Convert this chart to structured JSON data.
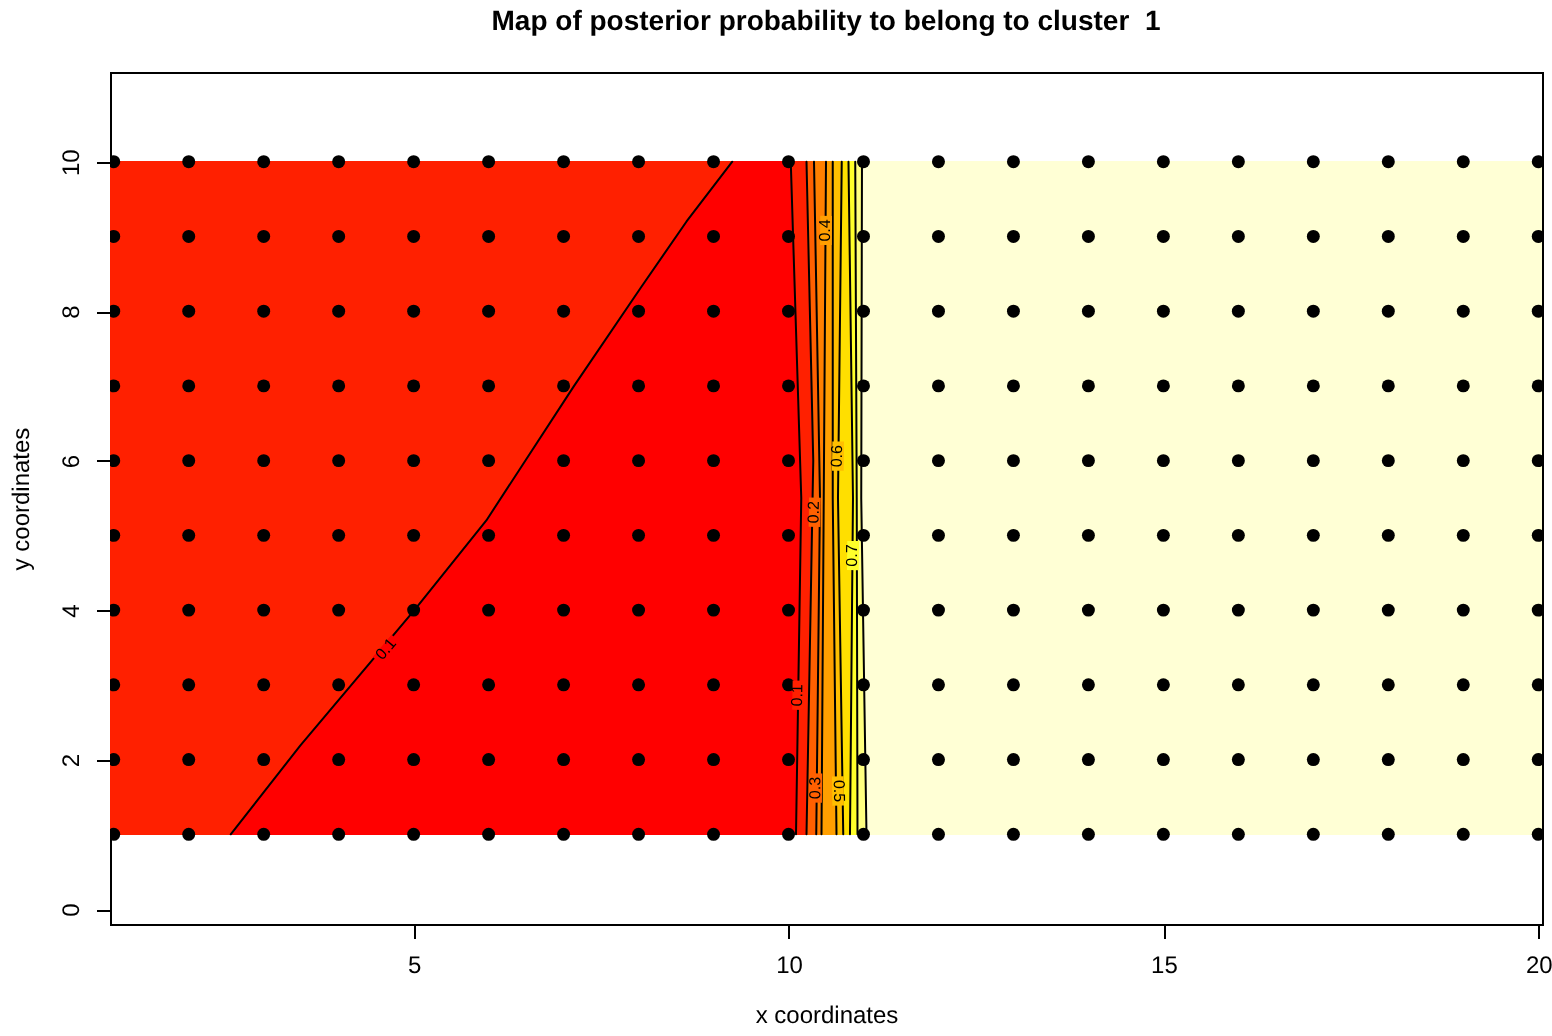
{
  "chart_data": {
    "type": "scatter",
    "title": "Map of posterior probability to belong to cluster  1",
    "xlabel": "x coordinates",
    "ylabel": "y coordinates",
    "xlim": [
      0.95,
      20.05
    ],
    "ylim": [
      -0.2,
      11.2
    ],
    "xticks": [
      5,
      10,
      15,
      20
    ],
    "yticks": [
      0,
      2,
      4,
      6,
      8,
      10
    ],
    "series": [
      {
        "type": "line",
        "color": "#000000",
        "x": [
          2.56,
          3.49,
          5.01,
          5.97,
          7.14,
          8.02,
          8.64,
          9.25
        ],
        "values": [
          1,
          2.19,
          4,
          5.2,
          7,
          8.3,
          9.2,
          10
        ]
      },
      {
        "type": "line",
        "color": "#000000",
        "x": [
          10.1,
          10.17,
          10.03
        ],
        "values": [
          1,
          5.5,
          10
        ]
      },
      {
        "type": "line",
        "color": "#000000",
        "x": [
          10.24,
          10.33,
          10.24
        ],
        "values": [
          1,
          6,
          10
        ]
      },
      {
        "type": "line",
        "color": "#000000",
        "x": [
          10.37,
          10.42,
          10.34
        ],
        "values": [
          1,
          5.5,
          10
        ]
      },
      {
        "type": "line",
        "color": "#000000",
        "x": [
          10.44,
          10.47,
          10.5
        ],
        "values": [
          1,
          5.5,
          10
        ]
      },
      {
        "type": "line",
        "color": "#000000",
        "x": [
          10.64,
          10.59,
          10.59
        ],
        "values": [
          1,
          5.5,
          10
        ]
      },
      {
        "type": "line",
        "color": "#000000",
        "x": [
          10.73,
          10.66,
          10.71
        ],
        "values": [
          1,
          5.5,
          10
        ]
      },
      {
        "type": "line",
        "color": "#000000",
        "x": [
          10.82,
          10.86,
          10.8
        ],
        "values": [
          1,
          5.5,
          10
        ]
      },
      {
        "type": "line",
        "color": "#000000",
        "x": [
          10.92,
          10.91,
          10.89
        ],
        "values": [
          1,
          5.5,
          10
        ]
      },
      {
        "type": "line",
        "color": "#000000",
        "x": [
          11.04,
          10.97,
          10.98
        ],
        "values": [
          1,
          5.5,
          10
        ]
      },
      {
        "color": "#000000",
        "marker": "circle",
        "x": [
          1,
          2,
          3,
          4,
          5,
          6,
          7,
          8,
          9,
          10,
          11,
          12,
          13,
          14,
          15,
          16,
          17,
          18,
          19,
          20,
          1,
          2,
          3,
          4,
          5,
          6,
          7,
          8,
          9,
          10,
          11,
          12,
          13,
          14,
          15,
          16,
          17,
          18,
          19,
          20,
          1,
          2,
          3,
          4,
          5,
          6,
          7,
          8,
          9,
          10,
          11,
          12,
          13,
          14,
          15,
          16,
          17,
          18,
          19,
          20,
          1,
          2,
          3,
          4,
          5,
          6,
          7,
          8,
          9,
          10,
          11,
          12,
          13,
          14,
          15,
          16,
          17,
          18,
          19,
          20,
          1,
          2,
          3,
          4,
          5,
          6,
          7,
          8,
          9,
          10,
          11,
          12,
          13,
          14,
          15,
          16,
          17,
          18,
          19,
          20,
          1,
          2,
          3,
          4,
          5,
          6,
          7,
          8,
          9,
          10,
          11,
          12,
          13,
          14,
          15,
          16,
          17,
          18,
          19,
          20,
          1,
          2,
          3,
          4,
          5,
          6,
          7,
          8,
          9,
          10,
          11,
          12,
          13,
          14,
          15,
          16,
          17,
          18,
          19,
          20,
          1,
          2,
          3,
          4,
          5,
          6,
          7,
          8,
          9,
          10,
          11,
          12,
          13,
          14,
          15,
          16,
          17,
          18,
          19,
          20,
          1,
          2,
          3,
          4,
          5,
          6,
          7,
          8,
          9,
          10,
          11,
          12,
          13,
          14,
          15,
          16,
          17,
          18,
          19,
          20,
          1,
          2,
          3,
          4,
          5,
          6,
          7,
          8,
          9,
          10,
          11,
          12,
          13,
          14,
          15,
          16,
          17,
          18,
          19,
          20
        ],
        "values": [
          1,
          1,
          1,
          1,
          1,
          1,
          1,
          1,
          1,
          1,
          1,
          1,
          1,
          1,
          1,
          1,
          1,
          1,
          1,
          1,
          2,
          2,
          2,
          2,
          2,
          2,
          2,
          2,
          2,
          2,
          2,
          2,
          2,
          2,
          2,
          2,
          2,
          2,
          2,
          2,
          3,
          3,
          3,
          3,
          3,
          3,
          3,
          3,
          3,
          3,
          3,
          3,
          3,
          3,
          3,
          3,
          3,
          3,
          3,
          3,
          4,
          4,
          4,
          4,
          4,
          4,
          4,
          4,
          4,
          4,
          4,
          4,
          4,
          4,
          4,
          4,
          4,
          4,
          4,
          4,
          5,
          5,
          5,
          5,
          5,
          5,
          5,
          5,
          5,
          5,
          5,
          5,
          5,
          5,
          5,
          5,
          5,
          5,
          5,
          5,
          6,
          6,
          6,
          6,
          6,
          6,
          6,
          6,
          6,
          6,
          6,
          6,
          6,
          6,
          6,
          6,
          6,
          6,
          6,
          6,
          7,
          7,
          7,
          7,
          7,
          7,
          7,
          7,
          7,
          7,
          7,
          7,
          7,
          7,
          7,
          7,
          7,
          7,
          7,
          7,
          8,
          8,
          8,
          8,
          8,
          8,
          8,
          8,
          8,
          8,
          8,
          8,
          8,
          8,
          8,
          8,
          8,
          8,
          8,
          8,
          9,
          9,
          9,
          9,
          9,
          9,
          9,
          9,
          9,
          9,
          9,
          9,
          9,
          9,
          9,
          9,
          9,
          9,
          9,
          9,
          10,
          10,
          10,
          10,
          10,
          10,
          10,
          10,
          10,
          10,
          10,
          10,
          10,
          10,
          10,
          10,
          10,
          10,
          10,
          10
        ]
      }
    ],
    "annotations": [
      {
        "text": "0.1",
        "x": 4.64,
        "y": 3.47
      },
      {
        "text": "0.1",
        "x": 10.13,
        "y": 2.86
      },
      {
        "text": "0.2",
        "x": 10.35,
        "y": 5.31
      },
      {
        "text": "0.3",
        "x": 10.37,
        "y": 1.62
      },
      {
        "text": "0.4",
        "x": 10.5,
        "y": 9.08
      },
      {
        "text": "0.5",
        "x": 10.66,
        "y": 1.58
      },
      {
        "text": "0.6",
        "x": 10.66,
        "y": 6.06
      },
      {
        "text": "0.7",
        "x": 10.86,
        "y": 4.73
      }
    ]
  }
}
